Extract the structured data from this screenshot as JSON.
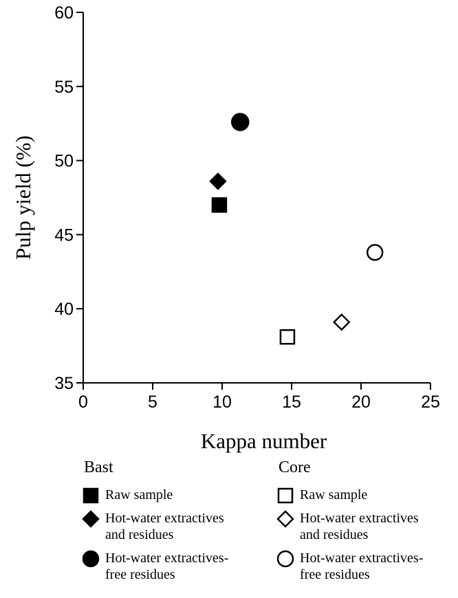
{
  "chart_data": {
    "type": "scatter",
    "xlabel": "Kappa number",
    "ylabel": "Pulp yield (%)",
    "xlim": [
      0,
      25
    ],
    "ylim": [
      35,
      60
    ],
    "x_ticks": [
      0,
      5,
      10,
      15,
      20,
      25
    ],
    "y_ticks": [
      35,
      40,
      45,
      50,
      55,
      60
    ],
    "grid": false,
    "legend_position": "bottom",
    "series": [
      {
        "name": "Raw sample",
        "group": "Bast",
        "marker": "square",
        "filled": true,
        "points": [
          {
            "x": 9.8,
            "y": 47.0
          }
        ]
      },
      {
        "name": "Hot-water extractives and residues",
        "group": "Bast",
        "marker": "diamond",
        "filled": true,
        "points": [
          {
            "x": 9.7,
            "y": 48.6
          }
        ]
      },
      {
        "name": "Hot-water extractives-free residues",
        "group": "Bast",
        "marker": "circle",
        "filled": true,
        "points": [
          {
            "x": 11.3,
            "y": 52.6
          }
        ]
      },
      {
        "name": "Raw sample",
        "group": "Core",
        "marker": "square",
        "filled": false,
        "points": [
          {
            "x": 14.7,
            "y": 38.1
          }
        ]
      },
      {
        "name": "Hot-water extractives and residues",
        "group": "Core",
        "marker": "diamond",
        "filled": false,
        "points": [
          {
            "x": 18.6,
            "y": 39.1
          }
        ]
      },
      {
        "name": "Hot-water extractives-free residues",
        "group": "Core",
        "marker": "circle",
        "filled": false,
        "points": [
          {
            "x": 21.0,
            "y": 43.8
          }
        ]
      }
    ]
  },
  "legend": {
    "groups": [
      {
        "title": "Bast",
        "items": [
          {
            "marker": "square",
            "filled": true,
            "lines": [
              "Raw sample"
            ]
          },
          {
            "marker": "diamond",
            "filled": true,
            "lines": [
              "Hot-water extractives",
              "and residues"
            ]
          },
          {
            "marker": "circle",
            "filled": true,
            "lines": [
              "Hot-water extractives-",
              "free residues"
            ]
          }
        ]
      },
      {
        "title": "Core",
        "items": [
          {
            "marker": "square",
            "filled": false,
            "lines": [
              "Raw sample"
            ]
          },
          {
            "marker": "diamond",
            "filled": false,
            "lines": [
              "Hot-water extractives",
              "and residues"
            ]
          },
          {
            "marker": "circle",
            "filled": false,
            "lines": [
              "Hot-water extractives-",
              "free residues"
            ]
          }
        ]
      }
    ]
  }
}
